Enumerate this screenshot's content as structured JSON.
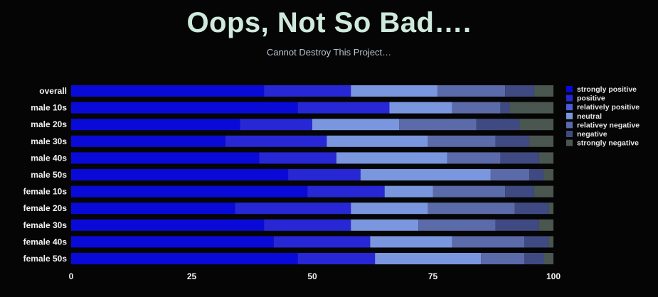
{
  "chart_data": {
    "type": "bar",
    "orientation": "horizontal",
    "stacked": true,
    "title": "Oops, Not So Bad….",
    "subtitle": "Cannot Destroy This Project…",
    "xlim": [
      0,
      100
    ],
    "x_ticks": [
      "0",
      "25",
      "50",
      "75",
      "100"
    ],
    "grid": false,
    "legend_position": "right",
    "categories": [
      "overall",
      "male 10s",
      "male 20s",
      "male 30s",
      "male 40s",
      "male 50s",
      "female 10s",
      "female 20s",
      "female 30s",
      "female 40s",
      "female 50s"
    ],
    "series": [
      {
        "name": "strongly positive",
        "color": "#0a0ad8",
        "values": [
          40,
          47,
          35,
          32,
          39,
          45,
          49,
          34,
          40,
          42,
          47
        ]
      },
      {
        "name": "positive",
        "color": "#2727d6",
        "values": [
          18,
          19,
          15,
          21,
          16,
          15,
          16,
          24,
          18,
          20,
          16
        ]
      },
      {
        "name": "relatively positive",
        "color": "#4a5ed8",
        "values": [
          0,
          0,
          0,
          0,
          0,
          0,
          0,
          0,
          0,
          0,
          0
        ]
      },
      {
        "name": "neutral",
        "color": "#7a96de",
        "values": [
          18,
          13,
          18,
          21,
          23,
          27,
          10,
          16,
          14,
          17,
          22
        ]
      },
      {
        "name": "relativey negative",
        "color": "#5b6aa8",
        "values": [
          14,
          10,
          16,
          14,
          11,
          8,
          15,
          18,
          16,
          15,
          9
        ]
      },
      {
        "name": "negative",
        "color": "#404a82",
        "values": [
          6,
          2,
          9,
          7,
          8,
          3,
          6,
          7,
          9,
          5,
          4
        ]
      },
      {
        "name": "strongly negative",
        "color": "#4a5650",
        "values": [
          4,
          9,
          7,
          5,
          3,
          2,
          4,
          1,
          3,
          1,
          2
        ]
      }
    ]
  }
}
